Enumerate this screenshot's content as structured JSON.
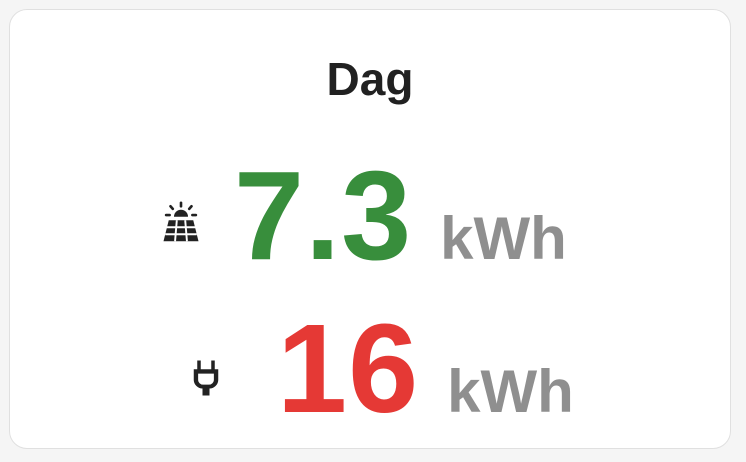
{
  "card": {
    "title": "Dag",
    "entries": [
      {
        "icon": "solar-panel-icon",
        "value": "7.3",
        "unit": "kWh",
        "color": "#388e3c"
      },
      {
        "icon": "power-plug-icon",
        "value": "16",
        "unit": "kWh",
        "color": "#e53935"
      }
    ]
  }
}
